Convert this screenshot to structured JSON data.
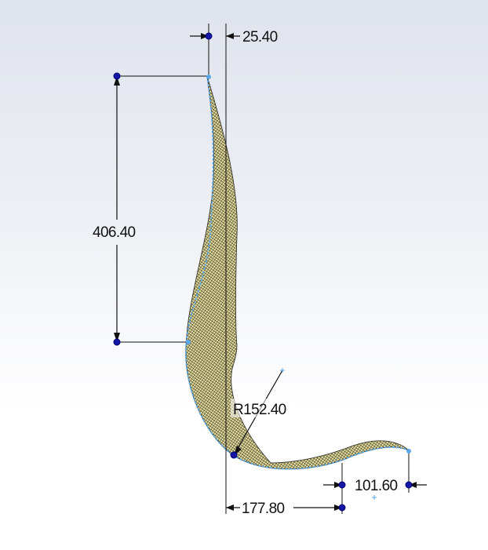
{
  "drawing": {
    "background_color": "#e4e7ef",
    "surface_color": "#d8d08a",
    "mesh_color": "#2a2a22",
    "edge_color": "#5aa8e8",
    "dimension_color": "#111111",
    "handle_color": "#1515a8",
    "dimensions": {
      "top_offset": "25.40",
      "height": "406.40",
      "radius": "R152.40",
      "tail_height": "101.60",
      "base_length": "177.80"
    }
  }
}
